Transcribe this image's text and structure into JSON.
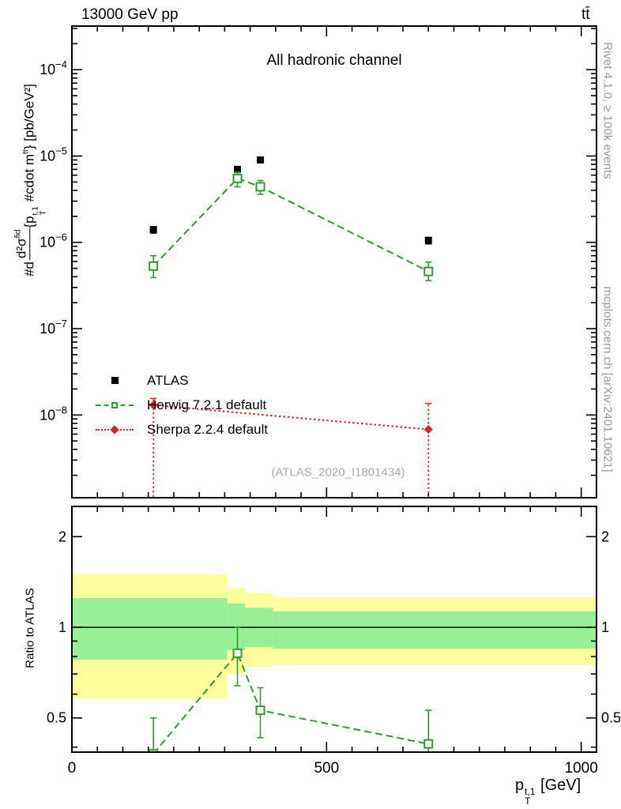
{
  "header": {
    "left": "13000 GeV pp",
    "right": "tt̄"
  },
  "margin_notes": {
    "top_right": "Rivet 4.1.0, ≥ 100k events",
    "bottom_right": "mcplots.cern.ch [arXiv:2401.10621]"
  },
  "main_panel": {
    "title": "All hadronic channel",
    "watermark": "(ATLAS_2020_I1801434)",
    "ylabel": {
      "prefix": "#d",
      "frac_numerator": "d²σ",
      "frac_numerator_sup": "fid",
      "brace_open": "{p",
      "p_sup": "t,1",
      "p_sub": "T",
      "mid": " #cdot m",
      "mid_sup": "tt",
      "close": "} [pb/GeV²]"
    }
  },
  "ratio_panel": {
    "ylabel": "Ratio to ATLAS"
  },
  "xaxis": {
    "p": "p",
    "p_sup": "t,1",
    "p_sub": "T",
    "unit": " [GeV]"
  },
  "legend": {
    "items": [
      {
        "label": "ATLAS",
        "marker": "filled-square",
        "line": "none",
        "color": "#000000"
      },
      {
        "label": "Herwig 7.2.1 default",
        "marker": "open-square",
        "line": "dashed",
        "color": "#339933"
      },
      {
        "label": "Sherpa 2.2.4 default",
        "marker": "filled-diamond",
        "line": "dotted",
        "color": "#e02020"
      }
    ]
  },
  "colors": {
    "band_yellow": "#ffff9e",
    "band_green": "#97f097",
    "axis": "#000000",
    "gray_text": "#9a9a9a",
    "watermark": "#ababab"
  },
  "chart_data": {
    "type": "scatter",
    "xlabel": "p_T^{t,1} [GeV]",
    "xlim": [
      0,
      1030
    ],
    "xticks": [
      0,
      500,
      1000
    ],
    "x_minor_step": 50,
    "panels": [
      {
        "name": "main",
        "yscale": "log",
        "ylim": [
          1.1e-09,
          0.00032
        ],
        "ytick_exponents": [
          -4,
          -5,
          -6,
          -7,
          -8
        ],
        "series": [
          {
            "name": "ATLAS",
            "color": "#000000",
            "marker": "filled-square",
            "line": "none",
            "x": [
              160,
              325,
              370,
              700
            ],
            "y": [
              1.4e-06,
              7e-06,
              9e-06,
              1.05e-06
            ],
            "yerr_lo": [
              1.2e-07,
              5e-07,
              6e-07,
              9e-08
            ],
            "yerr_hi": [
              1.2e-07,
              5e-07,
              6e-07,
              9e-08
            ]
          },
          {
            "name": "Herwig 7.2.1 default",
            "color": "#339933",
            "marker": "open-square",
            "line": "dashed",
            "x": [
              160,
              325,
              370,
              700
            ],
            "y": [
              5.3e-07,
              5.5e-06,
              4.4e-06,
              4.6e-07
            ],
            "yerr_lo": [
              1.4e-07,
              1.1e-06,
              8e-07,
              1e-07
            ],
            "yerr_hi": [
              1.7e-07,
              1e-06,
              8e-07,
              1.3e-07
            ]
          },
          {
            "name": "Sherpa 2.2.4 default",
            "color": "#e02020",
            "marker": "filled-diamond",
            "line": "dotted",
            "x": [
              160,
              700
            ],
            "y": [
              1.3e-08,
              6.8e-09
            ],
            "yerr_lo": [
              1.2e-08,
              5.7e-09
            ],
            "yerr_hi": [
              2.5e-09,
              6.8e-09
            ]
          }
        ]
      },
      {
        "name": "ratio",
        "yscale": "log",
        "ylim": [
          0.385,
          2.52
        ],
        "yticks": [
          0.5,
          1,
          2
        ],
        "yticks_minor": [
          0.4,
          0.6,
          0.7,
          0.8,
          0.9
        ],
        "reference_line": 1,
        "bands": {
          "edges": [
            0,
            305,
            340,
            395,
            1030
          ],
          "yellow": [
            [
              0.58,
              1.5
            ],
            [
              0.7,
              1.35
            ],
            [
              0.74,
              1.3
            ],
            [
              0.75,
              1.26
            ]
          ],
          "green": [
            [
              0.78,
              1.25
            ],
            [
              0.84,
              1.2
            ],
            [
              0.86,
              1.16
            ],
            [
              0.85,
              1.13
            ]
          ]
        },
        "series": [
          {
            "name": "Herwig 7.2.1 default",
            "color": "#339933",
            "marker": "open-square",
            "line": "dashed",
            "x": [
              160,
              325,
              370,
              700
            ],
            "y": [
              0.38,
              0.82,
              0.53,
              0.41
            ],
            "yerr_lo": [
              0.1,
              0.18,
              0.1,
              0.08
            ],
            "yerr_hi": [
              0.12,
              0.18,
              0.1,
              0.12
            ]
          }
        ]
      }
    ]
  }
}
